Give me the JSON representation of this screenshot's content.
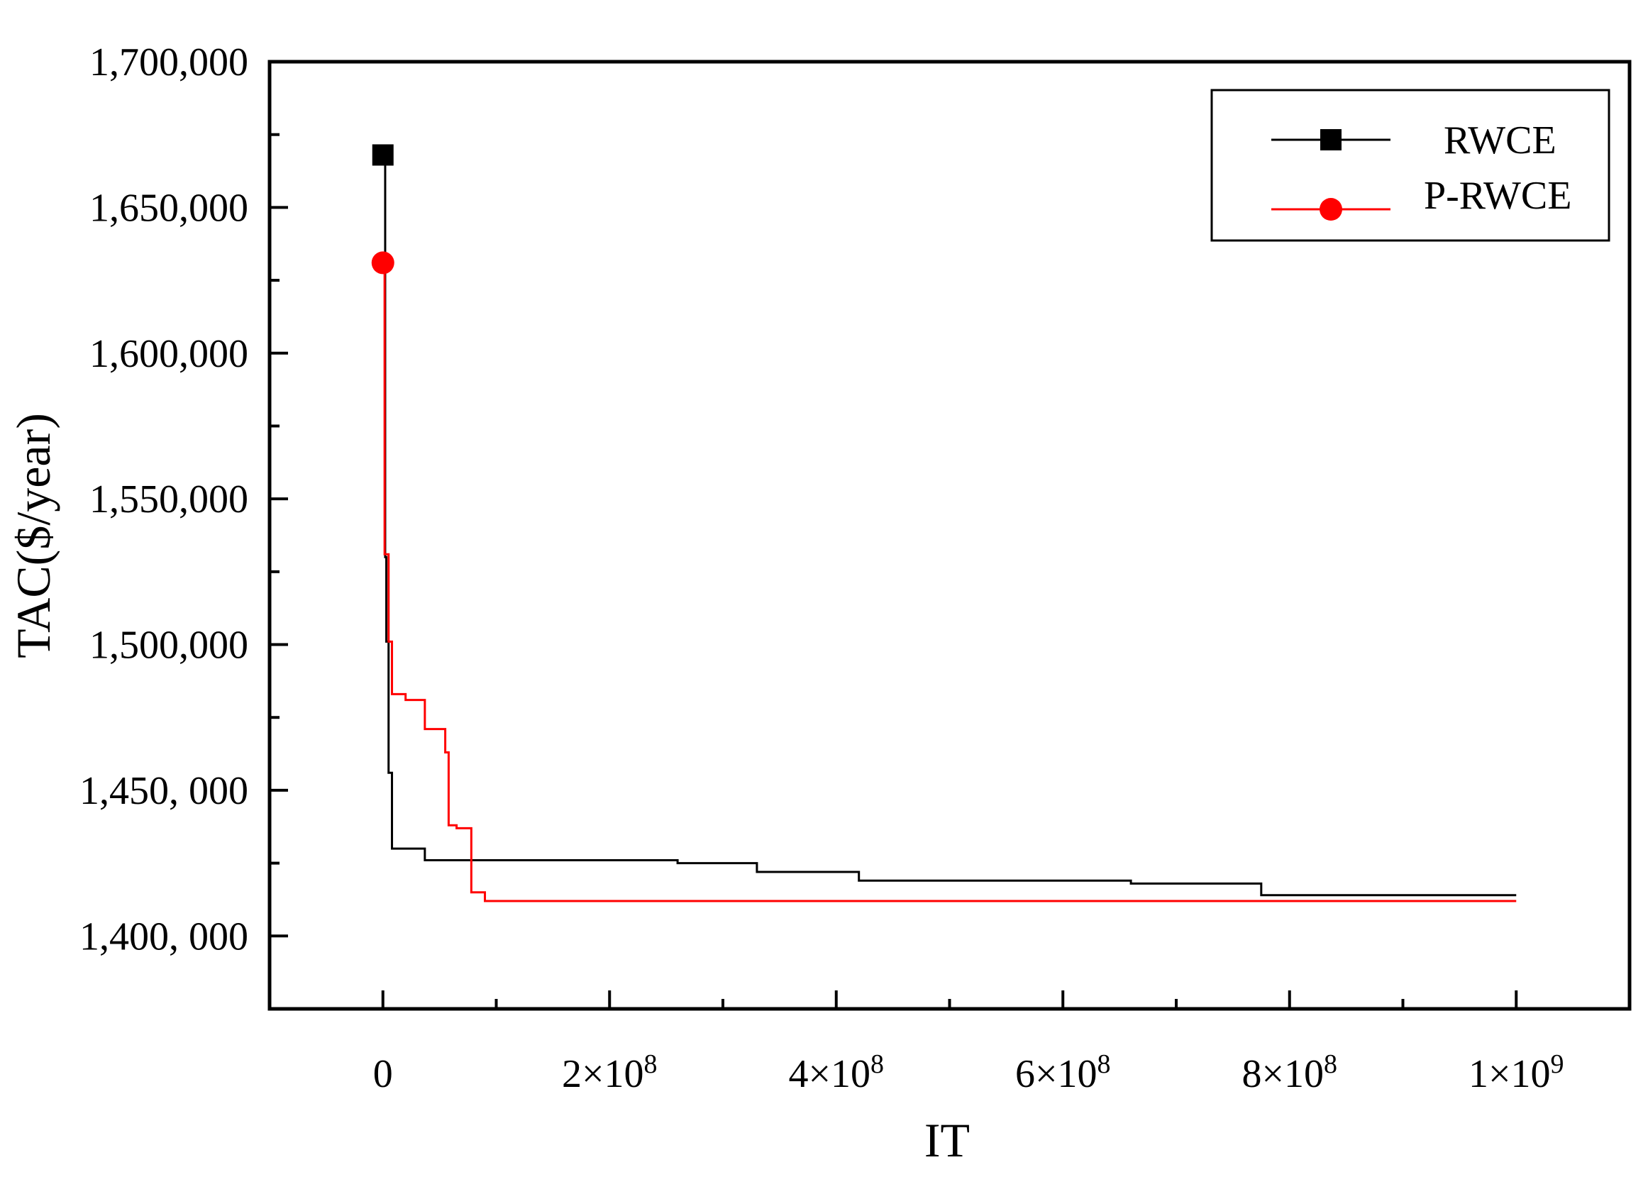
{
  "chart_data": {
    "type": "line",
    "title": "",
    "xlabel": "IT",
    "ylabel": "TAC($/year)",
    "xlim": [
      -100000000,
      1100000000
    ],
    "ylim": [
      1375000,
      1700000
    ],
    "x_ticks": [
      {
        "value": 0,
        "label": "0",
        "exp": ""
      },
      {
        "value": 200000000,
        "label": "2×10",
        "exp": "8"
      },
      {
        "value": 400000000,
        "label": "4×10",
        "exp": "8"
      },
      {
        "value": 600000000,
        "label": "6×10",
        "exp": "8"
      },
      {
        "value": 800000000,
        "label": "8×10",
        "exp": "8"
      },
      {
        "value": 1000000000,
        "label": "1×10",
        "exp": "9"
      }
    ],
    "y_ticks": [
      {
        "value": 1400000,
        "label": "1,400, 000"
      },
      {
        "value": 1450000,
        "label": "1,450, 000"
      },
      {
        "value": 1500000,
        "label": "1,500,000"
      },
      {
        "value": 1550000,
        "label": "1,550,000"
      },
      {
        "value": 1600000,
        "label": "1,600,000"
      },
      {
        "value": 1650000,
        "label": "1,650,000"
      },
      {
        "value": 1700000,
        "label": "1,700,000"
      }
    ],
    "grid": false,
    "legend_position": "top-right",
    "series": [
      {
        "name": "RWCE",
        "color": "#000000",
        "marker": "square",
        "step": true,
        "x": [
          0,
          2000000,
          3000000,
          5000000,
          8000000,
          37000000,
          60000000,
          260000000,
          330000000,
          420000000,
          660000000,
          775000000,
          1000000000
        ],
        "y": [
          1668000,
          1530000,
          1501000,
          1456000,
          1430000,
          1426000,
          1426000,
          1425000,
          1422000,
          1419000,
          1418000,
          1414000,
          1414000
        ]
      },
      {
        "name": "P-RWCE",
        "color": "#ff0000",
        "marker": "circle",
        "step": true,
        "x": [
          0,
          1500000,
          5000000,
          8000000,
          20000000,
          37000000,
          55000000,
          58000000,
          65000000,
          78000000,
          90000000,
          1000000000
        ],
        "y": [
          1631000,
          1531000,
          1501000,
          1483000,
          1481000,
          1471000,
          1463000,
          1438000,
          1437000,
          1415000,
          1412000,
          1412000
        ]
      }
    ]
  }
}
